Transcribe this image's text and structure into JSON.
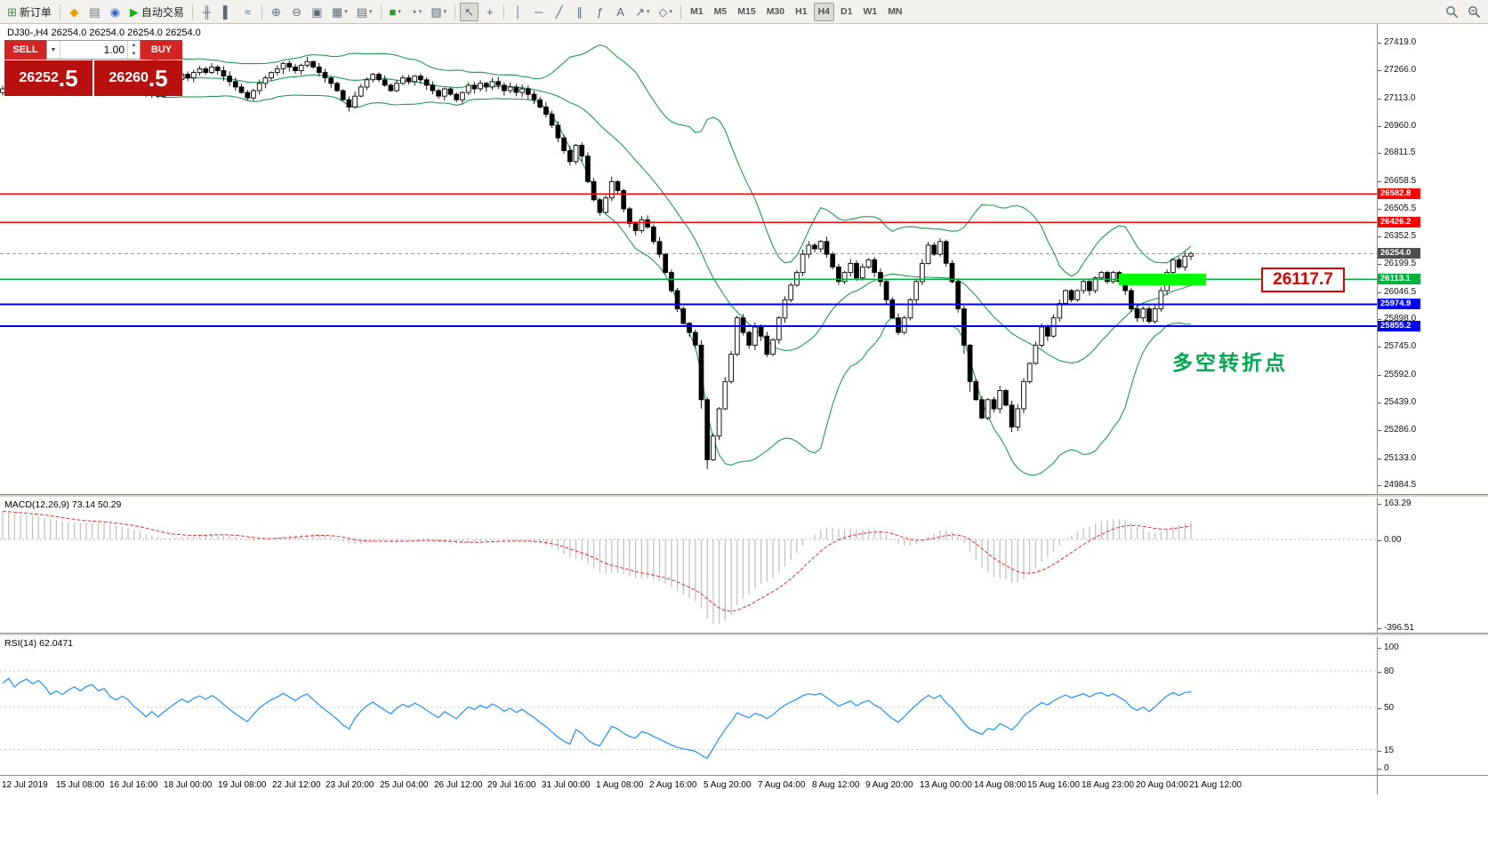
{
  "toolbar": {
    "groups": [
      {
        "items": [
          {
            "name": "new-order-button",
            "glyph": "⊞",
            "color": "#3aa03a",
            "label": "新订单"
          }
        ]
      },
      {
        "items": [
          {
            "name": "metaeditor-icon",
            "glyph": "◆",
            "color": "#e8a000"
          },
          {
            "name": "market-watch-icon",
            "glyph": "▤",
            "color": "#667788"
          },
          {
            "name": "terminal-icon",
            "glyph": "◉",
            "color": "#3366cc"
          },
          {
            "name": "autotrading-button",
            "glyph": "▶",
            "color": "#22aa22",
            "label": "自动交易"
          }
        ]
      },
      {
        "items": [
          {
            "name": "bar-chart-icon",
            "glyph": "╫"
          },
          {
            "name": "candlestick-chart-icon",
            "glyph": "▌"
          },
          {
            "name": "line-chart-icon",
            "glyph": "≈"
          }
        ]
      },
      {
        "items": [
          {
            "name": "zoom-in-icon",
            "glyph": "⊕"
          },
          {
            "name": "zoom-out-icon",
            "glyph": "⊖"
          },
          {
            "name": "tile-windows-icon",
            "glyph": "▣"
          },
          {
            "name": "new-chart-icon",
            "glyph": "▦",
            "dropdown": true
          },
          {
            "name": "profiles-icon",
            "glyph": "▤",
            "dropdown": true
          }
        ]
      },
      {
        "items": [
          {
            "name": "indicators-icon",
            "glyph": "■",
            "color": "#2a9a2a",
            "dropdown": true
          },
          {
            "name": "periods-icon",
            "glyph": "◔",
            "dropdown": true
          },
          {
            "name": "templates-icon",
            "glyph": "▨",
            "dropdown": true
          }
        ]
      },
      {
        "items": [
          {
            "name": "cursor-icon",
            "glyph": "↖",
            "active": true
          },
          {
            "name": "crosshair-icon",
            "glyph": "+"
          }
        ]
      },
      {
        "items": [
          {
            "name": "vertical-line-icon",
            "glyph": "│"
          },
          {
            "name": "horizontal-line-icon",
            "glyph": "─"
          },
          {
            "name": "trendline-icon",
            "glyph": "╱"
          },
          {
            "name": "channel-icon",
            "glyph": "∥"
          },
          {
            "name": "fibonacci-icon",
            "glyph": "ƒ"
          },
          {
            "name": "text-icon",
            "glyph": "A"
          },
          {
            "name": "arrows-icon",
            "glyph": "↗",
            "dropdown": true
          },
          {
            "name": "shapes-icon",
            "glyph": "◇",
            "dropdown": true
          }
        ]
      }
    ],
    "timeframes": [
      "M1",
      "M5",
      "M15",
      "M30",
      "H1",
      "H4",
      "D1",
      "W1",
      "MN"
    ],
    "active_timeframe": "H4"
  },
  "chart": {
    "symbol": "DJ30-",
    "period": "H4",
    "header": "DJ30-,H4 26254.0 26254.0 26254.0 26254.0"
  },
  "trade_panel": {
    "sell_label": "SELL",
    "buy_label": "BUY",
    "volume": "1.00",
    "sell_price": "26252.5",
    "buy_price": "26260.5"
  },
  "annotations": {
    "callout_price": "26117.7",
    "turning_point_text": "多空转折点",
    "highlight_color": "#00ff00"
  },
  "levels": [
    {
      "price": 26582.8,
      "label": "26582.8",
      "color": "#ff0000",
      "width": 1.5
    },
    {
      "price": 26426.2,
      "label": "26426.2",
      "color": "#ff0000",
      "width": 1.5
    },
    {
      "price": 26254.0,
      "label": "26254.0",
      "color": "#9aa0a6",
      "badge": "#4d4d4d",
      "width": 1,
      "dashed": true
    },
    {
      "price": 26113.1,
      "label": "26113.1",
      "color": "#00b33c",
      "width": 1.5
    },
    {
      "price": 25974.9,
      "label": "25974.9",
      "color": "#0000ff",
      "width": 2
    },
    {
      "price": 25855.2,
      "label": "25855.2",
      "color": "#0000ff",
      "width": 2
    }
  ],
  "price_scale": [
    "27419.0",
    "27266.0",
    "27113.0",
    "26960.0",
    "26811.5",
    "26658.5",
    "26505.5",
    "26352.5",
    "26199.5",
    "26046.5",
    "25898.0",
    "25745.0",
    "25592.0",
    "25439.0",
    "25286.0",
    "25133.0",
    "24984.5"
  ],
  "macd": {
    "header": "MACD(12,26,9) 73.14 50.29",
    "scale": [
      "163.29",
      "0.00",
      "-396.51"
    ]
  },
  "rsi": {
    "header": "RSI(14) 62.0471",
    "scale": [
      "100",
      "80",
      "50",
      "15",
      "0"
    ],
    "levels": [
      80,
      50,
      15
    ]
  },
  "time_axis": [
    "12 Jul 2019",
    "15 Jul 08:00",
    "16 Jul 16:00",
    "18 Jul 00:00",
    "19 Jul 08:00",
    "22 Jul 12:00",
    "23 Jul 20:00",
    "25 Jul 04:00",
    "26 Jul 12:00",
    "29 Jul 16:00",
    "31 Jul 00:00",
    "1 Aug 08:00",
    "2 Aug 16:00",
    "5 Aug 20:00",
    "7 Aug 04:00",
    "8 Aug 12:00",
    "9 Aug 20:00",
    "13 Aug 00:00",
    "14 Aug 08:00",
    "15 Aug 16:00",
    "18 Aug 23:00",
    "20 Aug 04:00",
    "21 Aug 12:00"
  ],
  "chart_data": {
    "type": "candlestick",
    "symbol": "DJ30-",
    "timeframe": "H4",
    "price_axis": {
      "top": 27419.0,
      "bottom": 24984.5
    },
    "closes": [
      27160,
      27185,
      27150,
      27200,
      27230,
      27210,
      27245,
      27220,
      27180,
      27210,
      27190,
      27230,
      27260,
      27240,
      27280,
      27300,
      27270,
      27290,
      27250,
      27230,
      27260,
      27240,
      27200,
      27170,
      27130,
      27160,
      27120,
      27150,
      27180,
      27210,
      27240,
      27220,
      27250,
      27270,
      27250,
      27280,
      27260,
      27230,
      27200,
      27170,
      27140,
      27110,
      27150,
      27190,
      27220,
      27250,
      27270,
      27300,
      27280,
      27260,
      27290,
      27310,
      27280,
      27250,
      27220,
      27190,
      27150,
      27100,
      27060,
      27120,
      27170,
      27210,
      27240,
      27210,
      27180,
      27150,
      27190,
      27220,
      27200,
      27230,
      27210,
      27180,
      27150,
      27120,
      27160,
      27130,
      27100,
      27140,
      27180,
      27160,
      27190,
      27170,
      27200,
      27180,
      27150,
      27170,
      27140,
      27160,
      27130,
      27100,
      27060,
      27020,
      26960,
      26890,
      26820,
      26760,
      26850,
      26790,
      26650,
      26550,
      26480,
      26560,
      26650,
      26600,
      26500,
      26420,
      26380,
      26440,
      26400,
      26320,
      26250,
      26150,
      26050,
      25950,
      25870,
      25820,
      25750,
      25450,
      25120,
      25250,
      25400,
      25550,
      25700,
      25900,
      25820,
      25750,
      25850,
      25800,
      25700,
      25780,
      25900,
      26000,
      26080,
      26150,
      26250,
      26300,
      26280,
      26320,
      26250,
      26180,
      26100,
      26150,
      26200,
      26120,
      26180,
      26220,
      26150,
      26100,
      26000,
      25900,
      25820,
      25900,
      26000,
      26100,
      26200,
      26300,
      26250,
      26320,
      26200,
      26100,
      25950,
      25750,
      25550,
      25450,
      25350,
      25450,
      25400,
      25500,
      25420,
      25300,
      25400,
      25550,
      25650,
      25750,
      25850,
      25800,
      25900,
      25980,
      26050,
      26000,
      26050,
      26100,
      26050,
      26120,
      26150,
      26100,
      26150,
      26100,
      26050,
      25950,
      25900,
      25950,
      25880,
      25950,
      26050,
      26150,
      26220,
      26180,
      26240,
      26254
    ],
    "indicators": {
      "bollinger": {
        "period": 20,
        "deviation": 2,
        "color": "#219a52"
      },
      "macd": {
        "fast": 12,
        "slow": 26,
        "signal": 9,
        "current_main": 73.14,
        "current_signal": 50.29,
        "scale_max": 163.29,
        "scale_min": -396.51
      },
      "rsi": {
        "period": 14,
        "current": 62.0471
      }
    },
    "key_levels": [
      26582.8,
      26426.2,
      26254.0,
      26113.1,
      25974.9,
      25855.2
    ]
  }
}
